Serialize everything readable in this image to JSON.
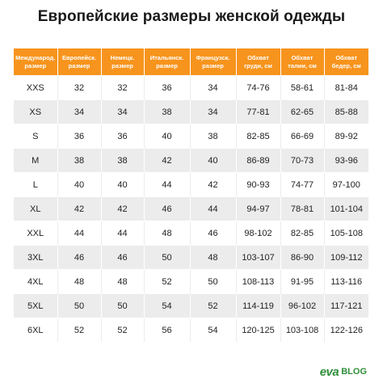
{
  "title": "Европейские размеры женской одежды",
  "table": {
    "headers": [
      "Международ. размер",
      "Европейск. размер",
      "Немецк. размер",
      "Итальянск. размер",
      "Французск. размер",
      "Обхват груди, см",
      "Обхват талии, см",
      "Обхват бедер, см"
    ],
    "rows": [
      [
        "XXS",
        "32",
        "32",
        "36",
        "34",
        "74-76",
        "58-61",
        "81-84"
      ],
      [
        "XS",
        "34",
        "34",
        "38",
        "34",
        "77-81",
        "62-65",
        "85-88"
      ],
      [
        "S",
        "36",
        "36",
        "40",
        "38",
        "82-85",
        "66-69",
        "89-92"
      ],
      [
        "M",
        "38",
        "38",
        "42",
        "40",
        "86-89",
        "70-73",
        "93-96"
      ],
      [
        "L",
        "40",
        "40",
        "44",
        "42",
        "90-93",
        "74-77",
        "97-100"
      ],
      [
        "XL",
        "42",
        "42",
        "46",
        "44",
        "94-97",
        "78-81",
        "101-104"
      ],
      [
        "XXL",
        "44",
        "44",
        "48",
        "46",
        "98-102",
        "82-85",
        "105-108"
      ],
      [
        "3XL",
        "46",
        "46",
        "50",
        "48",
        "103-107",
        "86-90",
        "109-112"
      ],
      [
        "4XL",
        "48",
        "48",
        "52",
        "50",
        "108-113",
        "91-95",
        "113-116"
      ],
      [
        "5XL",
        "50",
        "50",
        "54",
        "52",
        "114-119",
        "96-102",
        "117-121"
      ],
      [
        "6XL",
        "52",
        "52",
        "56",
        "54",
        "120-125",
        "103-108",
        "122-126"
      ]
    ]
  },
  "logo": {
    "mark": "eva",
    "text": "BLOG"
  },
  "colors": {
    "header_bg": "#f7941d",
    "row_alt_bg": "#ececec",
    "logo_green": "#2f8f3a"
  }
}
